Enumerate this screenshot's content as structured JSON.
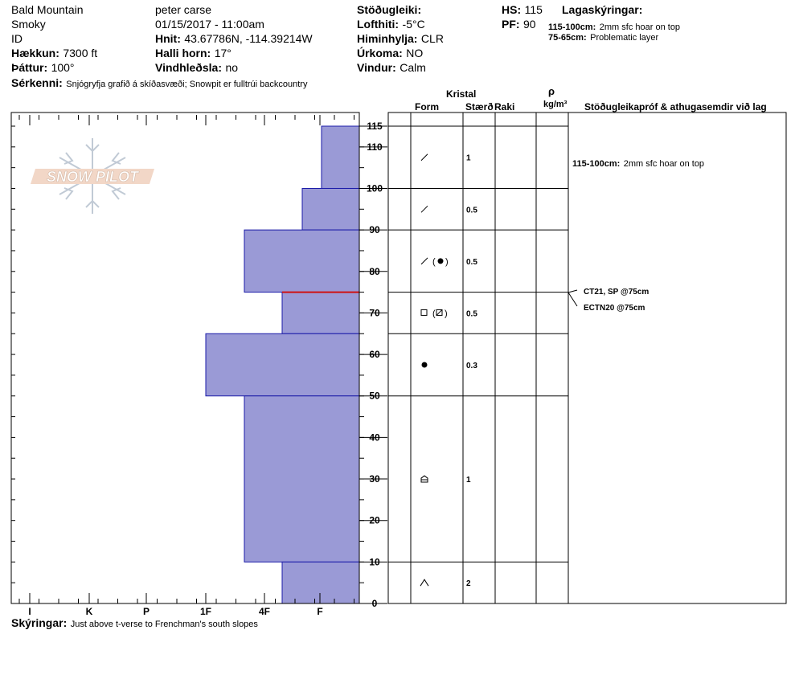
{
  "header": {
    "location": "Bald Mountain",
    "range": "Smoky",
    "state": "ID",
    "elevation_label": "Hækkun:",
    "elevation_value": "7300 ft",
    "aspect_label": "Þáttur:",
    "aspect_value": "100°",
    "observer": "peter carse",
    "datetime": "01/15/2017 - 11:00am",
    "coords_label": "Hnit:",
    "coords_value": "43.67786N, -114.39214W",
    "slope_label": "Halli horn:",
    "slope_value": "17°",
    "wind_loading_label": "Vindhleðsla:",
    "wind_loading_value": "no",
    "stability_label": "Stöðugleiki:",
    "air_temp_label": "Lofthiti:",
    "air_temp_value": "-5°C",
    "sky_label": "Himinhylja:",
    "sky_value": "CLR",
    "precip_label": "Úrkoma:",
    "precip_value": "NO",
    "wind_label": "Vindur:",
    "wind_value": "Calm",
    "hs_label": "HS:",
    "hs_value": "115",
    "pf_label": "PF:",
    "pf_value": "90",
    "layer_notes_label": "Lagaskýringar:",
    "layer_notes": [
      {
        "range": "115-100cm:",
        "text": "2mm sfc hoar on top"
      },
      {
        "range": "75-65cm:",
        "text": "Problematic layer"
      }
    ],
    "features_label": "Sérkenni:",
    "features_value": "Snjógryfja grafið á skíðasvæði;  Snowpit er fulltrúi backcountry"
  },
  "footer": {
    "notes_label": "Skýringar:",
    "notes_value": "Just above t-verse to Frenchman's south slopes"
  },
  "logo_text": "SNOW PILOT",
  "table": {
    "crystal_header": "Kristal",
    "form_header": "Form",
    "size_header": "Stærð",
    "moisture_header": "Raki",
    "density_symbol": "ρ",
    "density_unit": "kg/m³",
    "comments_header": "Stöðugleikapróf & athugasemdir við lag",
    "layer_comment_range": "115-100cm:",
    "layer_comment_text": "2mm sfc hoar on top",
    "tests": [
      "CT21, SP @75cm",
      "ECTN20 @75cm"
    ]
  },
  "chart_data": {
    "type": "snow-profile",
    "hardness_axis": [
      "I",
      "K",
      "P",
      "1F",
      "4F",
      "F"
    ],
    "depth_ticks": [
      0,
      10,
      20,
      30,
      40,
      50,
      60,
      70,
      80,
      90,
      100,
      110,
      115
    ],
    "ylim": [
      0,
      115
    ],
    "layers": [
      {
        "top": 115,
        "bottom": 100,
        "hardness": "F",
        "form": "surface-hoar",
        "size": "1"
      },
      {
        "top": 100,
        "bottom": 90,
        "hardness": "F+",
        "form": "decomposing",
        "size": "0.5"
      },
      {
        "top": 90,
        "bottom": 75,
        "hardness": "4F",
        "form": "decomposing (rounds)",
        "size": "0.5"
      },
      {
        "top": 75,
        "bottom": 65,
        "hardness": "4F-F",
        "form": "faceted (faceted-rounded)",
        "size": "0.5"
      },
      {
        "top": 65,
        "bottom": 50,
        "hardness": "1F",
        "form": "rounds",
        "size": "0.3"
      },
      {
        "top": 50,
        "bottom": 10,
        "hardness": "4F",
        "form": "depth-hoar",
        "size": "1"
      },
      {
        "top": 10,
        "bottom": 0,
        "hardness": "4F-F",
        "form": "depth-hoar",
        "size": "2"
      }
    ],
    "problem_layer_depth": 75,
    "colors": {
      "fill": "#9a9ad6",
      "stroke": "#1a1aa8",
      "problem_line": "#d01010"
    }
  }
}
